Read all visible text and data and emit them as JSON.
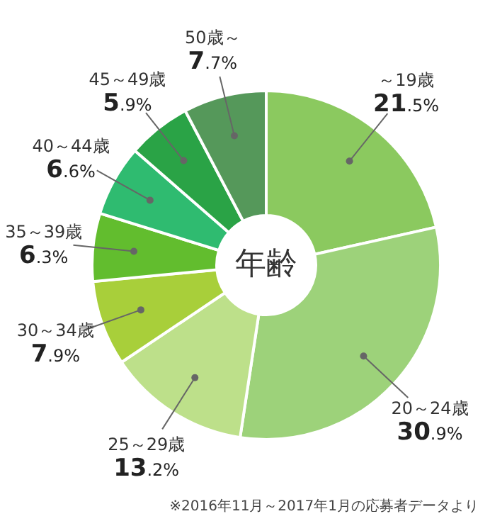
{
  "chart_data": {
    "type": "donut",
    "title": "年齢",
    "categories": [
      "～19歳",
      "20～24歳",
      "25～29歳",
      "30～34歳",
      "35～39歳",
      "40～44歳",
      "45～49歳",
      "50歳～"
    ],
    "values": [
      21.5,
      30.9,
      13.2,
      7.9,
      6.3,
      6.6,
      5.9,
      7.7
    ],
    "colors": [
      "#8bc95f",
      "#9dd27a",
      "#bde08a",
      "#a8cf3a",
      "#62bd2e",
      "#2fbb70",
      "#2aa346",
      "#55985a"
    ],
    "value_labels": [
      "21.5%",
      "30.9%",
      "13.2%",
      "7.9%",
      "6.3%",
      "6.6%",
      "5.9%",
      "7.7%"
    ],
    "legend": false,
    "annotations": [
      "※2016年11月～2017年1月の応募者データより"
    ]
  }
}
